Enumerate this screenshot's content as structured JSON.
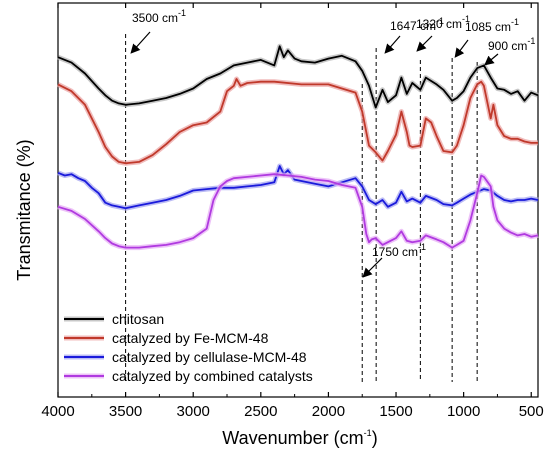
{
  "chart_data": {
    "type": "line",
    "xlabel": "Wavenumber (cm",
    "xlabel_sup": "-1",
    "xlabel_end": ")",
    "ylabel": "Transmitance (%)",
    "xlim": [
      4000,
      450
    ],
    "x_reversed": true,
    "y_axis_ticks": "none",
    "x_ticks": [
      4000,
      3500,
      3000,
      2500,
      2000,
      1500,
      1000,
      500
    ],
    "x_tick_labels": [
      "4000",
      "3500",
      "3000",
      "2500",
      "2000",
      "1500",
      "1000",
      "500"
    ],
    "grid": false,
    "legend_position": "bottom-left",
    "series": [
      {
        "name": "chitosan",
        "color": "#000000",
        "halo": "#b0b0b0",
        "points": [
          [
            4000,
            0.4
          ],
          [
            3900,
            0.48
          ],
          [
            3800,
            0.64
          ],
          [
            3700,
            0.86
          ],
          [
            3650,
            0.96
          ],
          [
            3600,
            1.04
          ],
          [
            3550,
            1.08
          ],
          [
            3500,
            1.1
          ],
          [
            3400,
            1.08
          ],
          [
            3300,
            1.04
          ],
          [
            3200,
            1.0
          ],
          [
            3100,
            0.94
          ],
          [
            3000,
            0.86
          ],
          [
            2900,
            0.72
          ],
          [
            2800,
            0.64
          ],
          [
            2700,
            0.52
          ],
          [
            2600,
            0.48
          ],
          [
            2500,
            0.44
          ],
          [
            2400,
            0.52
          ],
          [
            2360,
            0.24
          ],
          [
            2330,
            0.4
          ],
          [
            2300,
            0.3
          ],
          [
            2250,
            0.42
          ],
          [
            2200,
            0.46
          ],
          [
            2100,
            0.48
          ],
          [
            2000,
            0.42
          ],
          [
            1900,
            0.38
          ],
          [
            1800,
            0.46
          ],
          [
            1750,
            0.6
          ],
          [
            1700,
            0.82
          ],
          [
            1650,
            1.14
          ],
          [
            1600,
            0.88
          ],
          [
            1560,
            1.06
          ],
          [
            1500,
            0.96
          ],
          [
            1460,
            0.7
          ],
          [
            1420,
            0.94
          ],
          [
            1380,
            0.78
          ],
          [
            1320,
            0.88
          ],
          [
            1280,
            0.7
          ],
          [
            1200,
            0.8
          ],
          [
            1150,
            0.88
          ],
          [
            1085,
            1.04
          ],
          [
            1050,
            1.0
          ],
          [
            1000,
            0.9
          ],
          [
            950,
            0.7
          ],
          [
            900,
            0.56
          ],
          [
            850,
            0.52
          ],
          [
            800,
            0.7
          ],
          [
            750,
            0.86
          ],
          [
            700,
            0.88
          ],
          [
            650,
            0.94
          ],
          [
            600,
            0.9
          ],
          [
            550,
            1.04
          ],
          [
            500,
            0.92
          ],
          [
            450,
            0.96
          ]
        ]
      },
      {
        "name": "catalyzed by Fe-MCM-48",
        "color": "#c0392b",
        "halo": "#eaa0a0",
        "points": [
          [
            4000,
            0.8
          ],
          [
            3900,
            0.9
          ],
          [
            3800,
            1.1
          ],
          [
            3700,
            1.5
          ],
          [
            3650,
            1.72
          ],
          [
            3600,
            1.86
          ],
          [
            3550,
            1.94
          ],
          [
            3500,
            1.96
          ],
          [
            3400,
            1.94
          ],
          [
            3300,
            1.84
          ],
          [
            3200,
            1.68
          ],
          [
            3100,
            1.5
          ],
          [
            3000,
            1.4
          ],
          [
            2900,
            1.36
          ],
          [
            2800,
            1.2
          ],
          [
            2750,
            0.9
          ],
          [
            2700,
            0.82
          ],
          [
            2680,
            0.72
          ],
          [
            2650,
            0.82
          ],
          [
            2600,
            0.78
          ],
          [
            2500,
            0.76
          ],
          [
            2400,
            0.76
          ],
          [
            2200,
            0.8
          ],
          [
            2000,
            0.8
          ],
          [
            1900,
            0.86
          ],
          [
            1800,
            0.92
          ],
          [
            1750,
            1.2
          ],
          [
            1700,
            1.7
          ],
          [
            1650,
            1.8
          ],
          [
            1600,
            1.92
          ],
          [
            1560,
            1.78
          ],
          [
            1500,
            1.54
          ],
          [
            1460,
            1.2
          ],
          [
            1420,
            1.5
          ],
          [
            1400,
            1.7
          ],
          [
            1380,
            1.72
          ],
          [
            1320,
            1.7
          ],
          [
            1280,
            1.3
          ],
          [
            1240,
            1.36
          ],
          [
            1200,
            1.56
          ],
          [
            1150,
            1.78
          ],
          [
            1085,
            1.8
          ],
          [
            1050,
            1.7
          ],
          [
            1000,
            1.4
          ],
          [
            950,
            1.0
          ],
          [
            900,
            0.8
          ],
          [
            870,
            0.76
          ],
          [
            850,
            0.82
          ],
          [
            800,
            1.3
          ],
          [
            780,
            1.1
          ],
          [
            750,
            1.4
          ],
          [
            700,
            1.56
          ],
          [
            650,
            1.6
          ],
          [
            600,
            1.6
          ],
          [
            550,
            1.64
          ],
          [
            500,
            1.66
          ],
          [
            450,
            1.66
          ]
        ]
      },
      {
        "name": "catalyzed by cellulase-MCM-48",
        "color": "#1a1adb",
        "halo": "#a0a0f0",
        "points": [
          [
            4000,
            2.1
          ],
          [
            3950,
            2.14
          ],
          [
            3900,
            2.12
          ],
          [
            3850,
            2.18
          ],
          [
            3800,
            2.22
          ],
          [
            3750,
            2.32
          ],
          [
            3700,
            2.4
          ],
          [
            3650,
            2.54
          ],
          [
            3600,
            2.58
          ],
          [
            3550,
            2.6
          ],
          [
            3500,
            2.62
          ],
          [
            3400,
            2.58
          ],
          [
            3300,
            2.54
          ],
          [
            3200,
            2.5
          ],
          [
            3100,
            2.44
          ],
          [
            3000,
            2.36
          ],
          [
            2900,
            2.34
          ],
          [
            2800,
            2.32
          ],
          [
            2700,
            2.32
          ],
          [
            2600,
            2.3
          ],
          [
            2500,
            2.28
          ],
          [
            2400,
            2.24
          ],
          [
            2360,
            2.0
          ],
          [
            2330,
            2.12
          ],
          [
            2300,
            2.06
          ],
          [
            2250,
            2.2
          ],
          [
            2200,
            2.22
          ],
          [
            2100,
            2.26
          ],
          [
            2000,
            2.3
          ],
          [
            1900,
            2.24
          ],
          [
            1800,
            2.18
          ],
          [
            1750,
            2.3
          ],
          [
            1700,
            2.5
          ],
          [
            1650,
            2.56
          ],
          [
            1600,
            2.5
          ],
          [
            1560,
            2.6
          ],
          [
            1500,
            2.54
          ],
          [
            1460,
            2.38
          ],
          [
            1420,
            2.52
          ],
          [
            1380,
            2.48
          ],
          [
            1320,
            2.54
          ],
          [
            1280,
            2.44
          ],
          [
            1200,
            2.5
          ],
          [
            1150,
            2.56
          ],
          [
            1085,
            2.58
          ],
          [
            1050,
            2.54
          ],
          [
            1000,
            2.48
          ],
          [
            950,
            2.42
          ],
          [
            900,
            2.38
          ],
          [
            850,
            2.34
          ],
          [
            800,
            2.36
          ],
          [
            750,
            2.44
          ],
          [
            700,
            2.5
          ],
          [
            650,
            2.52
          ],
          [
            600,
            2.5
          ],
          [
            550,
            2.5
          ],
          [
            500,
            2.48
          ],
          [
            450,
            2.5
          ]
        ]
      },
      {
        "name": "catalyzed by combined catalysts",
        "color": "#b03ae0",
        "halo": "#e6aaf5",
        "points": [
          [
            4000,
            2.6
          ],
          [
            3900,
            2.66
          ],
          [
            3800,
            2.78
          ],
          [
            3700,
            2.96
          ],
          [
            3650,
            3.06
          ],
          [
            3600,
            3.14
          ],
          [
            3550,
            3.18
          ],
          [
            3500,
            3.2
          ],
          [
            3400,
            3.2
          ],
          [
            3300,
            3.18
          ],
          [
            3200,
            3.16
          ],
          [
            3100,
            3.12
          ],
          [
            3000,
            3.06
          ],
          [
            2900,
            2.92
          ],
          [
            2850,
            2.5
          ],
          [
            2800,
            2.3
          ],
          [
            2750,
            2.22
          ],
          [
            2700,
            2.18
          ],
          [
            2600,
            2.16
          ],
          [
            2500,
            2.14
          ],
          [
            2400,
            2.12
          ],
          [
            2300,
            2.14
          ],
          [
            2200,
            2.16
          ],
          [
            2100,
            2.2
          ],
          [
            2000,
            2.22
          ],
          [
            1900,
            2.28
          ],
          [
            1800,
            2.32
          ],
          [
            1750,
            2.6
          ],
          [
            1720,
            3.0
          ],
          [
            1700,
            3.12
          ],
          [
            1680,
            3.08
          ],
          [
            1650,
            3.06
          ],
          [
            1600,
            3.16
          ],
          [
            1560,
            3.12
          ],
          [
            1500,
            3.06
          ],
          [
            1460,
            2.96
          ],
          [
            1420,
            3.1
          ],
          [
            1380,
            3.12
          ],
          [
            1320,
            3.1
          ],
          [
            1280,
            3.02
          ],
          [
            1200,
            3.08
          ],
          [
            1150,
            3.12
          ],
          [
            1085,
            3.2
          ],
          [
            1050,
            3.16
          ],
          [
            1000,
            3.1
          ],
          [
            950,
            2.8
          ],
          [
            900,
            2.4
          ],
          [
            870,
            2.14
          ],
          [
            850,
            2.16
          ],
          [
            800,
            2.3
          ],
          [
            780,
            2.6
          ],
          [
            750,
            2.8
          ],
          [
            700,
            2.92
          ],
          [
            650,
            2.98
          ],
          [
            600,
            3.02
          ],
          [
            550,
            3.0
          ],
          [
            500,
            3.04
          ],
          [
            450,
            3.02
          ]
        ]
      }
    ],
    "annotations": [
      {
        "label": "3500 cm",
        "sup": "-1",
        "x": 3500,
        "arrow": true
      },
      {
        "label": "1647 cm",
        "sup": "-1",
        "x": 1647,
        "arrow": true
      },
      {
        "label": "1320 cm",
        "sup": "-1",
        "x": 1320,
        "arrow": true
      },
      {
        "label": "1085 cm",
        "sup": "-1",
        "x": 1085,
        "arrow": true
      },
      {
        "label": "900 cm",
        "sup": "-1",
        "x": 900,
        "arrow": true
      },
      {
        "label": "1750 cm",
        "sup": "-1",
        "x": 1750,
        "arrow": true
      }
    ],
    "reference_lines_x": [
      3500,
      1750,
      1647,
      1320,
      1085,
      900
    ]
  }
}
